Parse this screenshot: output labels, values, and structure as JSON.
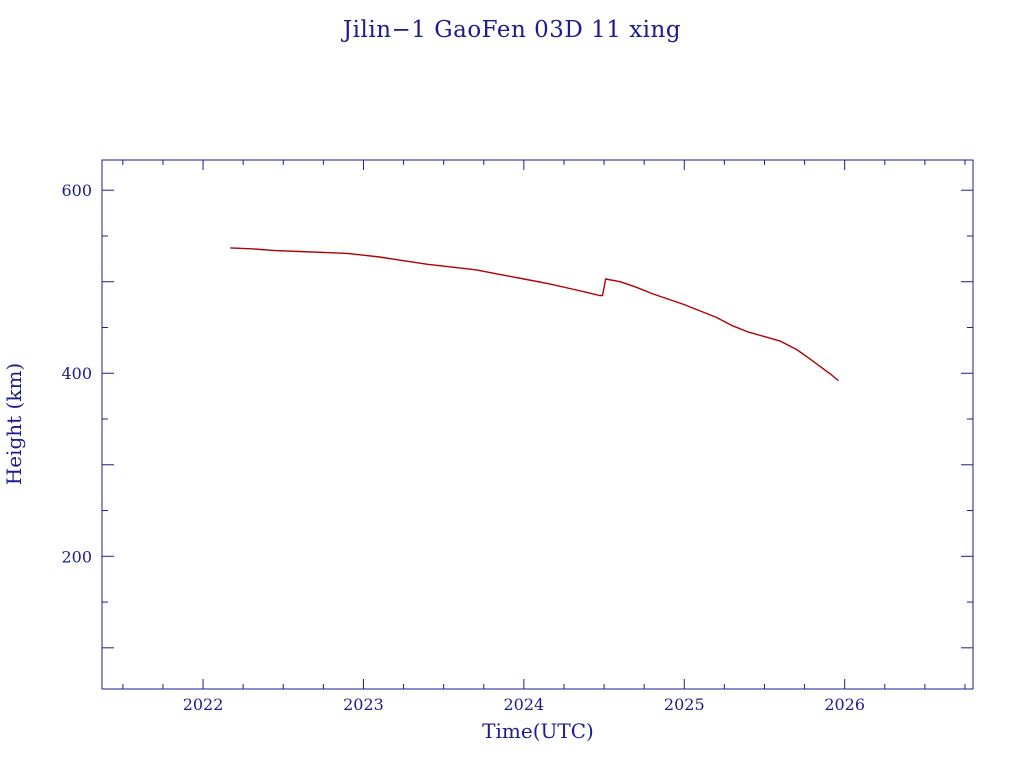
{
  "chart_data": {
    "type": "line",
    "title": "Jilin−1 GaoFen 03D 11 xing",
    "xlabel": "Time(UTC)",
    "ylabel": "Height (km)",
    "xlim": [
      2021.37,
      2026.8
    ],
    "ylim": [
      55,
      633
    ],
    "x_ticks": [
      2022,
      2023,
      2024,
      2025,
      2026
    ],
    "y_ticks": [
      200,
      400,
      600
    ],
    "grid": false,
    "colors": {
      "axes": "#1c1c8c",
      "series": "#b00000"
    },
    "series": [
      {
        "x": [
          2022.17,
          2022.3,
          2022.45,
          2022.6,
          2022.75,
          2022.9,
          2023.0,
          2023.1,
          2023.25,
          2023.4,
          2023.55,
          2023.7,
          2023.85,
          2024.0,
          2024.15,
          2024.3,
          2024.4,
          2024.47,
          2024.49,
          2024.51,
          2024.6,
          2024.7,
          2024.8,
          2024.9,
          2025.0,
          2025.1,
          2025.2,
          2025.3,
          2025.4,
          2025.5,
          2025.6,
          2025.7,
          2025.78,
          2025.85,
          2025.92,
          2025.96
        ],
        "y": [
          537,
          536,
          534,
          533,
          532,
          531,
          529,
          527,
          523,
          519,
          516,
          513,
          508,
          503,
          498,
          492,
          488,
          485,
          485,
          503,
          500,
          494,
          487,
          481,
          475,
          468,
          461,
          452,
          445,
          440,
          435,
          426,
          416,
          407,
          398,
          392
        ]
      }
    ]
  }
}
